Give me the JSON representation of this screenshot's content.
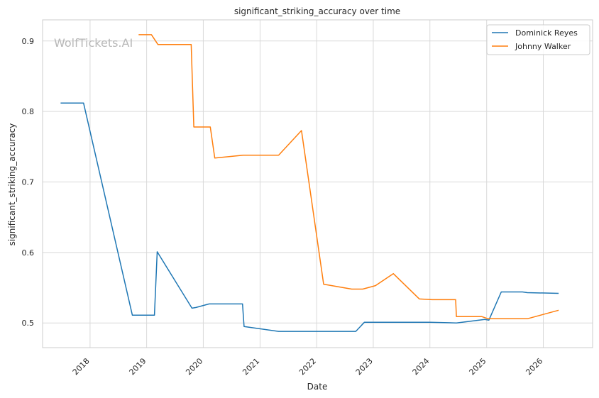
{
  "watermark": "WolfTickets.AI",
  "chart_data": {
    "type": "line",
    "title": "significant_striking_accuracy over time",
    "xlabel": "Date",
    "ylabel": "significant_striking_accuracy",
    "xlim": [
      "2017-03-01",
      "2026-11-15"
    ],
    "ylim": [
      0.465,
      0.93
    ],
    "x_ticks": [
      "2018",
      "2019",
      "2020",
      "2021",
      "2022",
      "2023",
      "2024",
      "2025",
      "2026"
    ],
    "y_ticks": [
      "0.5",
      "0.6",
      "0.7",
      "0.8",
      "0.9"
    ],
    "grid": true,
    "legend_position": "top-right",
    "series": [
      {
        "name": "Dominick Reyes",
        "color": "#1f77b4",
        "points": [
          [
            "2017-06-25",
            0.812
          ],
          [
            "2017-11-20",
            0.812
          ],
          [
            "2018-10-01",
            0.511
          ],
          [
            "2019-02-20",
            0.511
          ],
          [
            "2019-03-10",
            0.601
          ],
          [
            "2019-10-20",
            0.521
          ],
          [
            "2019-11-15",
            0.522
          ],
          [
            "2020-02-08",
            0.527
          ],
          [
            "2020-09-10",
            0.527
          ],
          [
            "2020-09-20",
            0.495
          ],
          [
            "2021-05-01",
            0.488
          ],
          [
            "2022-09-10",
            0.488
          ],
          [
            "2022-11-05",
            0.501
          ],
          [
            "2024-01-01",
            0.501
          ],
          [
            "2024-06-20",
            0.5
          ],
          [
            "2024-12-20",
            0.505
          ],
          [
            "2025-01-15",
            0.504
          ],
          [
            "2025-04-05",
            0.544
          ],
          [
            "2025-08-20",
            0.544
          ],
          [
            "2025-09-20",
            0.543
          ],
          [
            "2026-04-10",
            0.542
          ]
        ]
      },
      {
        "name": "Johnny Walker",
        "color": "#ff7f0e",
        "points": [
          [
            "2018-11-10",
            0.909
          ],
          [
            "2019-02-01",
            0.909
          ],
          [
            "2019-03-15",
            0.895
          ],
          [
            "2019-10-15",
            0.895
          ],
          [
            "2019-11-01",
            0.778
          ],
          [
            "2020-02-15",
            0.778
          ],
          [
            "2020-03-15",
            0.734
          ],
          [
            "2020-09-15",
            0.738
          ],
          [
            "2021-05-01",
            0.738
          ],
          [
            "2021-09-25",
            0.773
          ],
          [
            "2022-02-15",
            0.555
          ],
          [
            "2022-08-15",
            0.548
          ],
          [
            "2022-10-25",
            0.548
          ],
          [
            "2023-01-15",
            0.553
          ],
          [
            "2023-05-10",
            0.57
          ],
          [
            "2023-10-25",
            0.534
          ],
          [
            "2024-01-15",
            0.533
          ],
          [
            "2024-06-15",
            0.533
          ],
          [
            "2024-06-20",
            0.509
          ],
          [
            "2024-12-01",
            0.509
          ],
          [
            "2025-01-10",
            0.506
          ],
          [
            "2025-09-20",
            0.506
          ],
          [
            "2026-04-10",
            0.518
          ]
        ]
      }
    ]
  }
}
